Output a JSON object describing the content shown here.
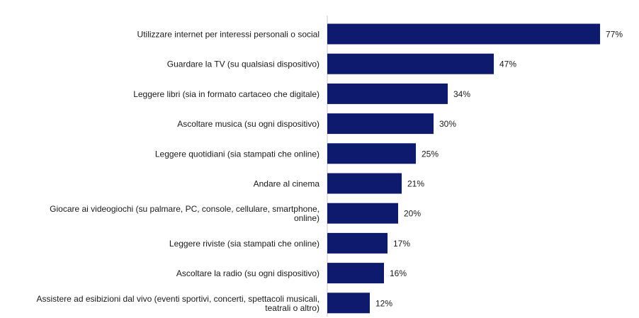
{
  "chart_data": {
    "type": "bar",
    "orientation": "horizontal",
    "categories": [
      "Utilizzare internet per interessi personali o social",
      "Guardare la TV (su qualsiasi dispositivo)",
      "Leggere libri (sia in formato cartaceo che digitale)",
      "Ascoltare musica (su ogni dispositivo)",
      "Leggere quotidiani (sia stampati che online)",
      "Andare al cinema",
      "Giocare ai videogiochi (su palmare, PC, console, cellulare, smartphone, online)",
      "Leggere riviste (sia stampati che online)",
      "Ascoltare la radio (su ogni dispositivo)",
      "Assistere ad esibizioni dal vivo (eventi sportivi, concerti, spettacoli musicali, teatrali o altro)"
    ],
    "category_lines": [
      [
        "Utilizzare internet per interessi personali o social"
      ],
      [
        "Guardare la TV (su qualsiasi dispositivo)"
      ],
      [
        "Leggere libri (sia in formato cartaceo che digitale)"
      ],
      [
        "Ascoltare musica (su ogni dispositivo)"
      ],
      [
        "Leggere quotidiani (sia stampati che online)"
      ],
      [
        "Andare al cinema"
      ],
      [
        "Giocare ai videogiochi (su palmare, PC, console, cellulare, smartphone,",
        "online)"
      ],
      [
        "Leggere riviste (sia stampati che online)"
      ],
      [
        "Ascoltare la radio (su ogni dispositivo)"
      ],
      [
        "Assistere ad esibizioni dal vivo (eventi sportivi, concerti, spettacoli musicali,",
        "teatrali o altro)"
      ]
    ],
    "values": [
      77,
      47,
      34,
      30,
      25,
      21,
      20,
      17,
      16,
      12
    ],
    "value_labels": [
      "77%",
      "47%",
      "34%",
      "30%",
      "25%",
      "21%",
      "20%",
      "17%",
      "16%",
      "12%"
    ],
    "unit": "%",
    "xlim": [
      0,
      100
    ],
    "grid": false,
    "legend": "none",
    "colors": {
      "bar": "#0d1a6e",
      "axis": "#c8c8c8",
      "text": "#1a1a1a"
    }
  }
}
